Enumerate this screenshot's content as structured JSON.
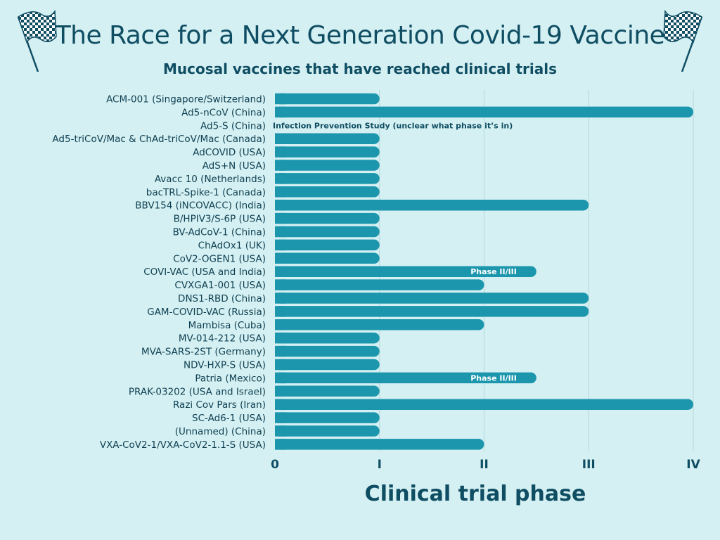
{
  "header": {
    "title": "The Race for a Next Generation Covid-19 Vaccine",
    "subtitle": "Mucosal vaccines that have reached clinical trials"
  },
  "icons": {
    "left": "checkered-flag-icon",
    "right": "checkered-flag-icon"
  },
  "colors": {
    "background": "#d4f0f2",
    "bar": "#1b96ad",
    "text": "#0f4d63",
    "grid": "#b4d6dc"
  },
  "chart_data": {
    "type": "bar",
    "orientation": "horizontal",
    "title": "The Race for a Next Generation Covid-19 Vaccine",
    "subtitle": "Mucosal vaccines that have reached clinical trials",
    "xlabel": "Clinical trial phase",
    "ylabel": "",
    "xlim": [
      0,
      4
    ],
    "x_ticks": [
      0,
      1,
      2,
      3,
      4
    ],
    "x_tick_labels": [
      "0",
      "I",
      "II",
      "III",
      "IV"
    ],
    "grid": "vertical",
    "categories": [
      "ACM-001 (Singapore/Switzerland)",
      "Ad5-nCoV (China)",
      "Ad5-S (China)",
      "Ad5-triCoV/Mac & ChAd-triCoV/Mac (Canada)",
      "AdCOVID (USA)",
      "AdS+N (USA)",
      "Avacc 10 (Netherlands)",
      "bacTRL-Spike-1 (Canada)",
      "BBV154 (iNCOVACC) (India)",
      "B/HPIV3/S-6P (USA)",
      "BV-AdCoV-1 (China)",
      "ChAdOx1 (UK)",
      "CoV2-OGEN1 (USA)",
      "COVI-VAC (USA and India)",
      "CVXGA1-001 (USA)",
      "DNS1-RBD (China)",
      "GAM-COVID-VAC (Russia)",
      "Mambisa (Cuba)",
      "MV-014-212 (USA)",
      "MVA-SARS-2ST (Germany)",
      "NDV-HXP-S (USA)",
      "Patria (Mexico)",
      "PRAK-03202 (USA and Israel)",
      "Razi Cov Pars (Iran)",
      "SC-Ad6-1 (USA)",
      "(Unnamed) (China)",
      "VXA-CoV2-1/VXA-CoV2-1.1-S (USA)"
    ],
    "values": [
      1,
      4,
      0,
      1,
      1,
      1,
      1,
      1,
      3,
      1,
      1,
      1,
      1,
      2.5,
      2,
      3,
      3,
      2,
      1,
      1,
      1,
      2.5,
      1,
      4,
      1,
      1,
      2
    ],
    "annotations": [
      {
        "category": "Ad5-S (China)",
        "text": "Infection Prevention Study (unclear what phase it’s in)"
      },
      {
        "category": "COVI-VAC (USA and India)",
        "text": "Phase II/III"
      },
      {
        "category": "Patria (Mexico)",
        "text": "Phase II/III"
      }
    ]
  }
}
